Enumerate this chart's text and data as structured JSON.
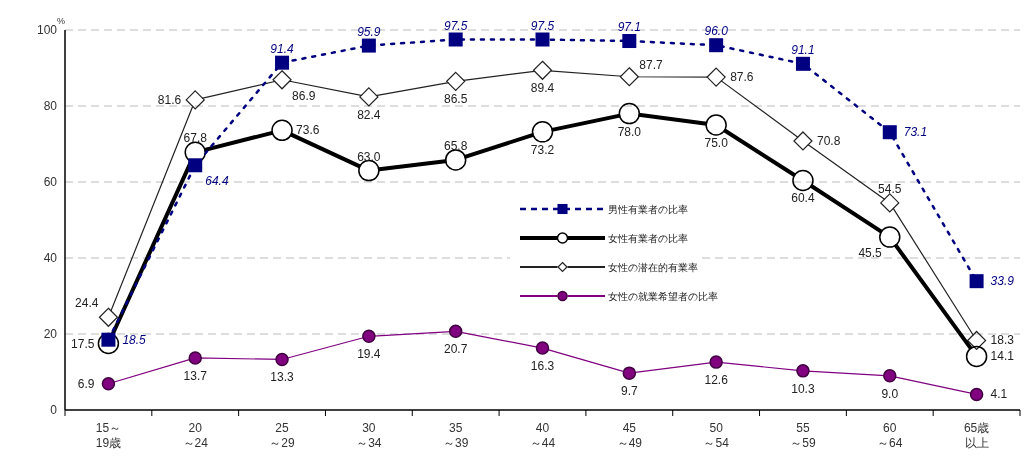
{
  "chart_data": {
    "type": "line",
    "ylabel": "%",
    "categories": [
      "15～\n19歳",
      "20\n～24",
      "25\n～29",
      "30\n～34",
      "35\n～39",
      "40\n～44",
      "45\n～49",
      "50\n～54",
      "55\n～59",
      "60\n～64",
      "65歳以上"
    ],
    "ylim": [
      0,
      100
    ],
    "yticks": [
      0,
      20,
      40,
      60,
      80,
      100
    ],
    "grid": "y",
    "legend": "center",
    "series": [
      {
        "name": "男性有業者の比率",
        "color": "#000080",
        "marker": "square",
        "line_style": "dotted",
        "values": [
          18.5,
          64.4,
          91.4,
          95.9,
          97.5,
          97.5,
          97.1,
          96.0,
          91.1,
          73.1,
          33.9
        ],
        "value_labels": [
          "18.5",
          "64.4",
          "91.4",
          "95.9",
          "97.5",
          "97.5",
          "97.1",
          "96.0",
          "91.1",
          "73.1",
          "33.9"
        ]
      },
      {
        "name": "女性有業者の比率",
        "color": "#000000",
        "marker": "circle",
        "line_style": "solid",
        "values": [
          17.5,
          67.8,
          73.6,
          63.0,
          65.8,
          73.2,
          78.0,
          75.0,
          60.4,
          45.5,
          14.1
        ],
        "value_labels": [
          "17.5",
          "67.8",
          "73.6",
          "63.0",
          "65.8",
          "73.2",
          "78.0",
          "75.0",
          "60.4",
          "45.5",
          "14.1"
        ]
      },
      {
        "name": "女性の潜在的有業率",
        "color": "#222222",
        "marker": "diamond",
        "line_style": "solid",
        "values": [
          24.4,
          81.6,
          86.9,
          82.4,
          86.5,
          89.4,
          87.7,
          87.6,
          70.8,
          54.5,
          18.3
        ],
        "value_labels": [
          "24.4",
          "81.6",
          "86.9",
          "82.4",
          "86.5",
          "89.4",
          "87.7",
          "87.6",
          "70.8",
          "54.5",
          "18.3"
        ]
      },
      {
        "name": "女性の就業希望者の比率",
        "color": "#800080",
        "marker": "circle",
        "line_style": "solid",
        "values": [
          6.9,
          13.7,
          13.3,
          19.4,
          20.7,
          16.3,
          9.7,
          12.6,
          10.3,
          9.0,
          4.1
        ],
        "value_labels": [
          "6.9",
          "13.7",
          "13.3",
          "19.4",
          "20.7",
          "16.3",
          "9.7",
          "12.6",
          "10.3",
          "9.0",
          "4.1"
        ]
      }
    ]
  }
}
